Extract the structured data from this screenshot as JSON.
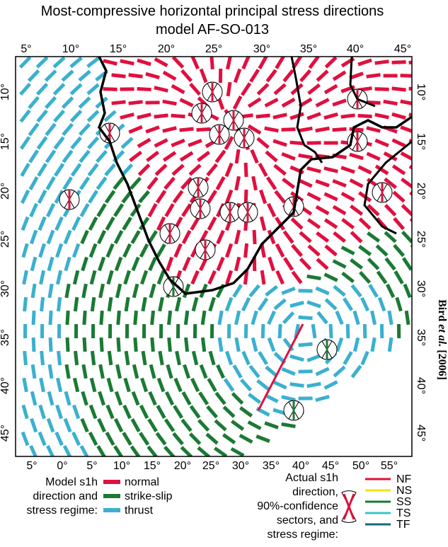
{
  "title": [
    "Most-compressive horizontal principal stress directions",
    "model AF-SO-013"
  ],
  "top_axis": [
    "5°",
    "10°",
    "15°",
    "20°",
    "25°",
    "30°",
    "35°",
    "40°",
    "45°"
  ],
  "left_axis": [
    "10°",
    "15°",
    "20°",
    "25°",
    "30°",
    "35°",
    "40°",
    "45°"
  ],
  "right_axis": [
    "10°",
    "15°",
    "20°",
    "25°",
    "30°",
    "35°",
    "40°",
    "45°"
  ],
  "bottom_axis": [
    "5°",
    "0°",
    "5°",
    "10°",
    "15°",
    "20°",
    "25°",
    "30°",
    "35°",
    "40°",
    "45°",
    "50°",
    "55°"
  ],
  "credit": {
    "author": "Bird",
    "etal": "et al.",
    "year": "[2006]"
  },
  "legend_model": {
    "label": [
      "Model s1h",
      "direction and",
      "stress regime:"
    ],
    "items": [
      "normal",
      "strike-slip",
      "thrust"
    ]
  },
  "legend_actual": {
    "label": [
      "Actual s1h",
      "direction,",
      "90%-confidence",
      "sectors, and",
      "stress regime:"
    ],
    "items": [
      "NF",
      "NS",
      "SS",
      "TS",
      "TF"
    ]
  }
}
